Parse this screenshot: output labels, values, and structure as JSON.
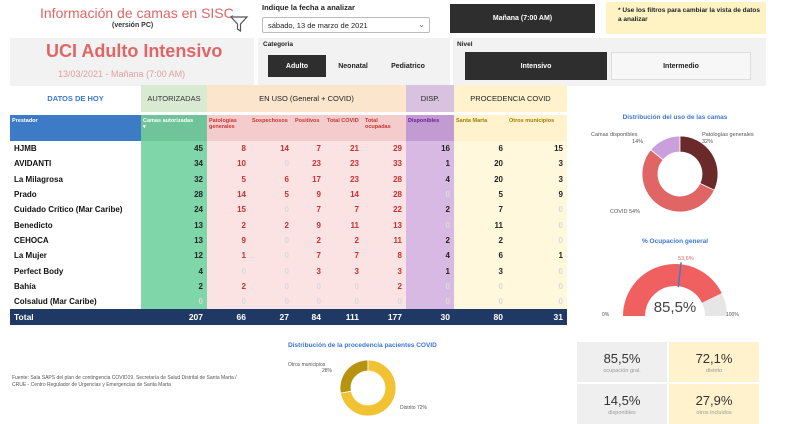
{
  "header": {
    "title": "Información de camas en SISC",
    "version": "(versión PC)",
    "date_label": "Indique la fecha a analizar",
    "date_value": "sábado, 13 de marzo de 2021",
    "shift": "Mañana (7:00 AM)",
    "note": "* Use los filtros para cambiar la vista de datos a analizar"
  },
  "title_panel": {
    "title": "UCI Adulto Intensivo",
    "subtitle": "13/03/2021 - Mañana (7:00 AM)"
  },
  "categoria": {
    "label": "Categoria",
    "options": [
      "Adulto",
      "Neonatal",
      "Pediatrico"
    ],
    "selected": "Adulto"
  },
  "nivel": {
    "label": "Nivel",
    "options": [
      "Intensivo",
      "Intermedio"
    ],
    "selected": "Intensivo"
  },
  "sections": {
    "hoy": "DATOS DE HOY",
    "autorizadas": "AUTORIZADAS",
    "uso": "EN USO (General + COVID)",
    "disp": "DISP.",
    "procedencia": "PROCEDENCIA COVID"
  },
  "table": {
    "columns": [
      "Prestador",
      "Camas autorizadas",
      "Patologías generales",
      "Sospechosos",
      "Positivos",
      "Total COVID",
      "Total ocupadas",
      "Disponibles",
      "Santa Marta",
      "Otros municipios"
    ],
    "rows": [
      [
        "HJMB",
        "45",
        "8",
        "14",
        "7",
        "21",
        "29",
        "16",
        "6",
        "15"
      ],
      [
        "AVIDANTI",
        "34",
        "10",
        "0",
        "23",
        "23",
        "33",
        "1",
        "20",
        "3"
      ],
      [
        "La Milagrosa",
        "32",
        "5",
        "6",
        "17",
        "23",
        "28",
        "4",
        "20",
        "3"
      ],
      [
        "Prado",
        "28",
        "14",
        "5",
        "9",
        "14",
        "28",
        "0",
        "5",
        "9"
      ],
      [
        "Cuidado Crítico (Mar Caribe)",
        "24",
        "15",
        "0",
        "7",
        "7",
        "22",
        "2",
        "7",
        "0"
      ],
      [
        "Benedicto",
        "13",
        "2",
        "2",
        "9",
        "11",
        "13",
        "0",
        "11",
        "0"
      ],
      [
        "CEHOCA",
        "13",
        "9",
        "0",
        "2",
        "2",
        "11",
        "2",
        "2",
        "0"
      ],
      [
        "La Mujer",
        "12",
        "1",
        "0",
        "7",
        "7",
        "8",
        "4",
        "6",
        "1"
      ],
      [
        "Perfect Body",
        "4",
        "0",
        "0",
        "3",
        "3",
        "3",
        "1",
        "3",
        "0"
      ],
      [
        "Bahía",
        "2",
        "2",
        "0",
        "0",
        "0",
        "2",
        "0",
        "0",
        "0"
      ],
      [
        "Colsalud (Mar Caribe)",
        "0",
        "0",
        "0",
        "0",
        "0",
        "0",
        "0",
        "0",
        "0"
      ]
    ],
    "total": [
      "Total",
      "207",
      "66",
      "27",
      "84",
      "111",
      "177",
      "30",
      "80",
      "31"
    ]
  },
  "donut1": {
    "title": "Distribución del uso de las camas",
    "labels": {
      "disponibles": "Camas disponibles",
      "disponibles_pct": "14%",
      "patologias": "Patologías generales",
      "patologias_pct": "32%",
      "covid": "COVID 54%"
    }
  },
  "gauge": {
    "title": "% Ocupacion general",
    "value_label": "85,5%",
    "target_label": "53,6%",
    "min_label": "0%",
    "max_label": "100%"
  },
  "donut2": {
    "title": "Distribución de la procedencia pacientes COVID",
    "otros_label": "Otros municipios",
    "otros_pct": "28%",
    "distrito_label": "Distrito 72%"
  },
  "source": "Fuente: Sala SAPS del plan de contingencia COVID19. Secretaría de Salud Distrital de Santa Marta / CRUE - Centro Regulador de Urgencias y Emergencias de Santa Marta",
  "kpis": [
    {
      "value": "85,5%",
      "label": "ocupación gral."
    },
    {
      "value": "72,1%",
      "label": "distrito"
    },
    {
      "value": "14,5%",
      "label": "disponibles"
    },
    {
      "value": "27,9%",
      "label": "otros incluidos"
    }
  ],
  "chart_data": [
    {
      "type": "pie",
      "title": "Distribución del uso de las camas",
      "categories": [
        "Camas disponibles",
        "Patologías generales",
        "COVID"
      ],
      "values": [
        14,
        32,
        54
      ],
      "colors": [
        "#c9a0dc",
        "#6b2a2a",
        "#e06666"
      ]
    },
    {
      "type": "gauge",
      "title": "% Ocupacion general",
      "value": 85.5,
      "target": 53.6,
      "range": [
        0,
        100
      ]
    },
    {
      "type": "pie",
      "title": "Distribución de la procedencia pacientes COVID",
      "categories": [
        "Otros municipios",
        "Distrito"
      ],
      "values": [
        28,
        72
      ],
      "colors": [
        "#b8930f",
        "#f1c232"
      ]
    }
  ]
}
